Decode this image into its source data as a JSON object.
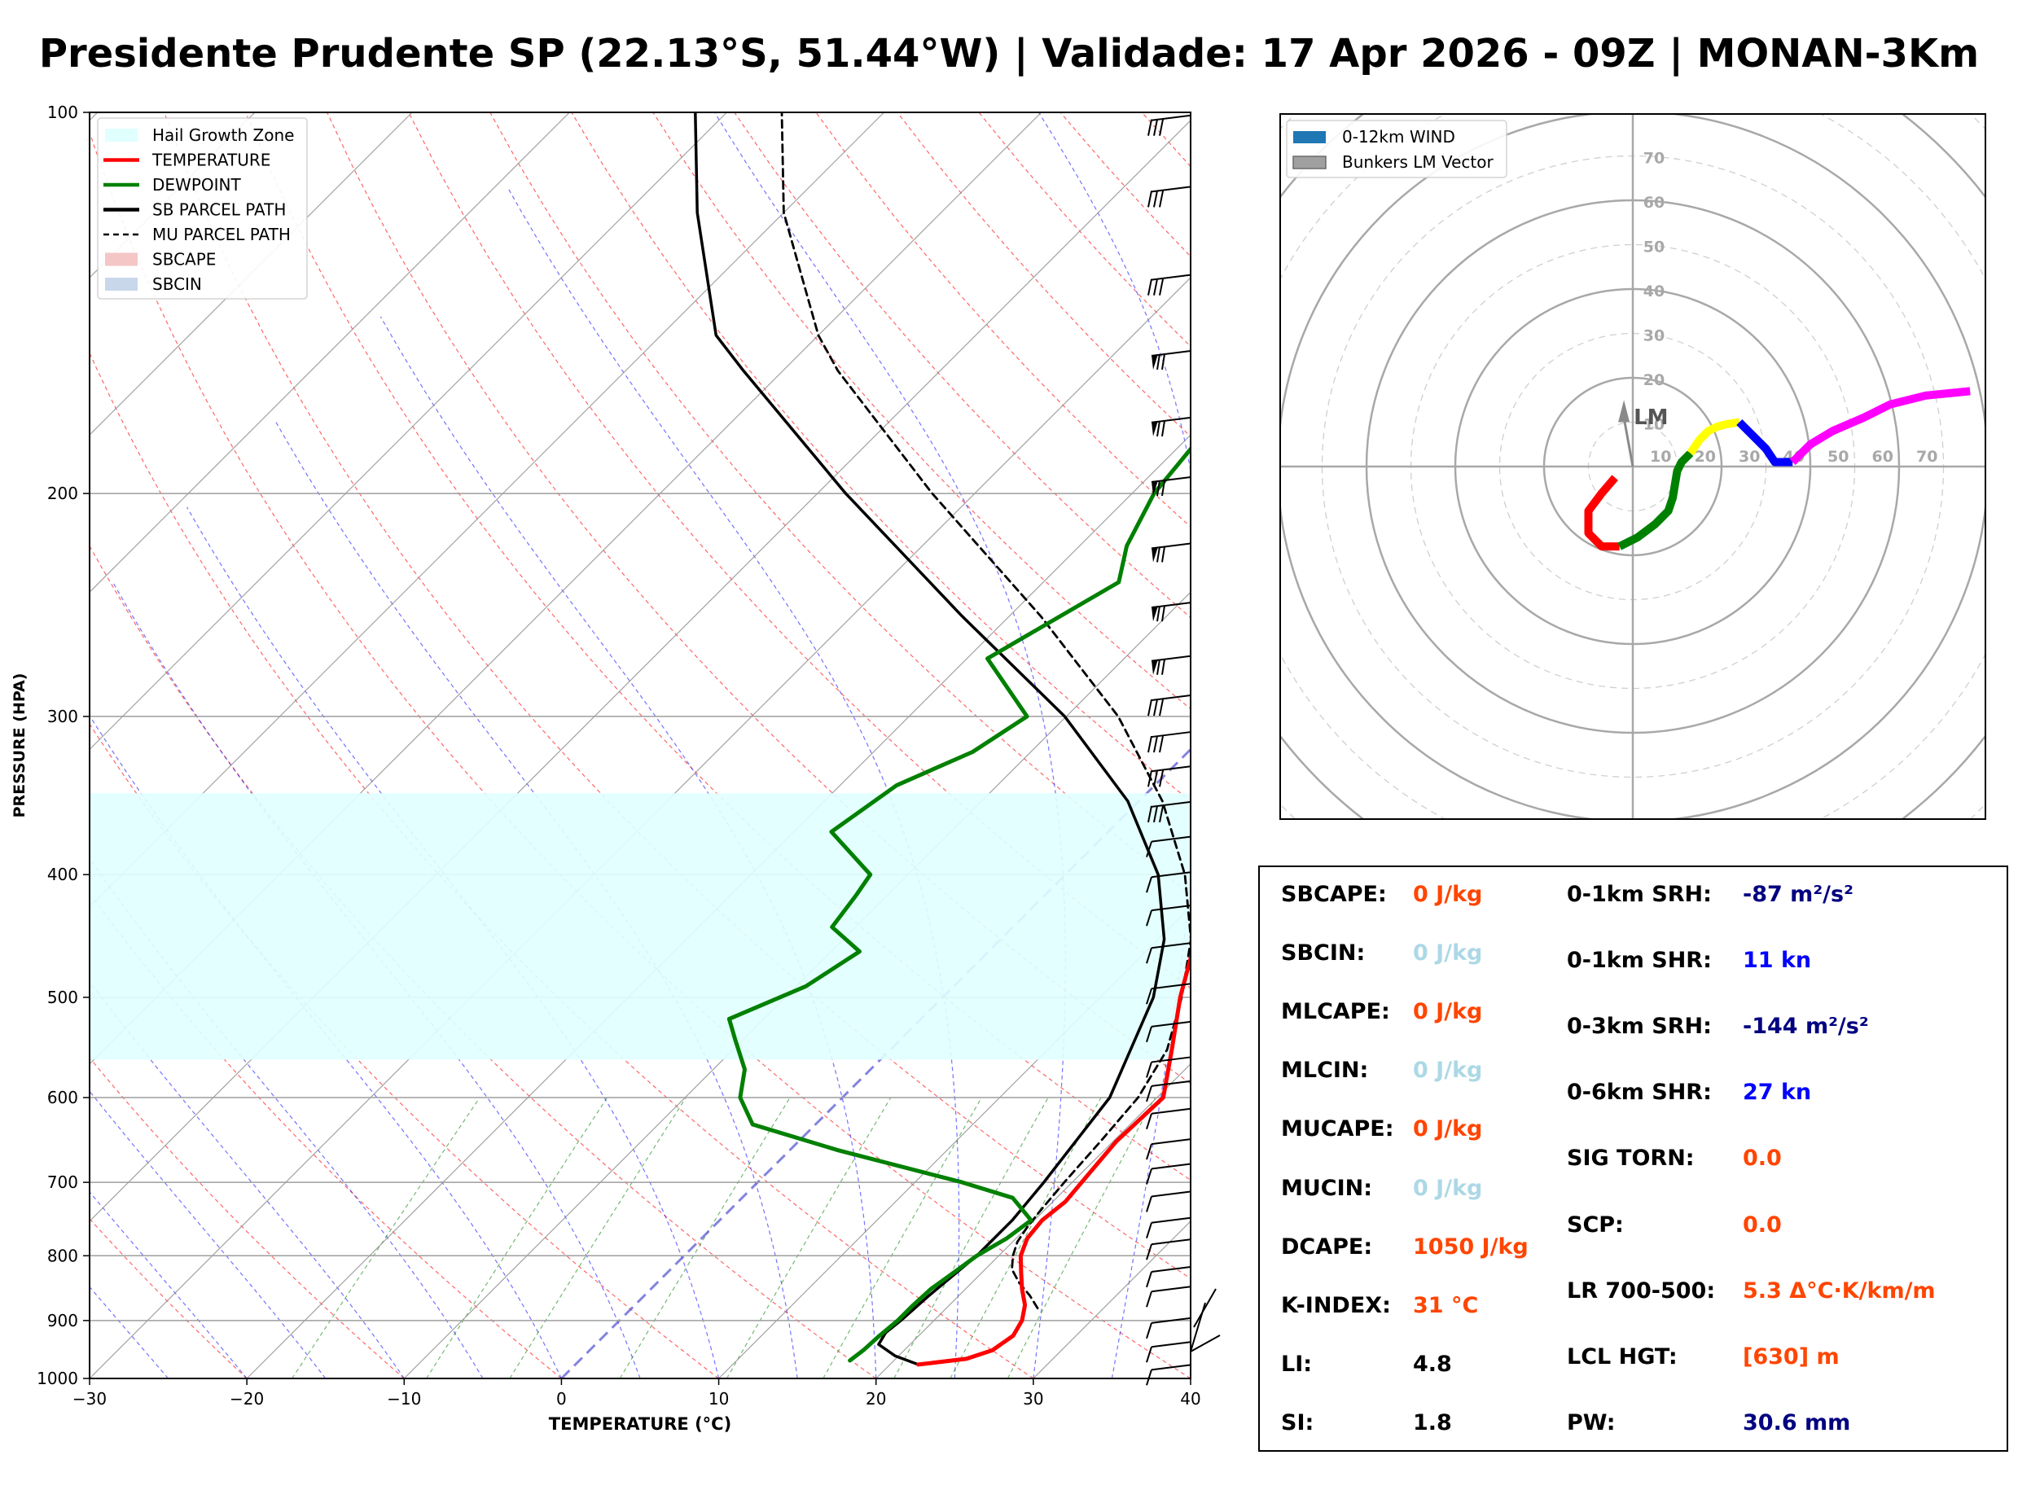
{
  "title": "Presidente Prudente SP (22.13°S, 51.44°W) | Validade: 17 Apr 2026 - 09Z | MONAN-3Km",
  "chart_data": [
    {
      "type": "line",
      "kind": "skew-T log-P sounding",
      "xlabel": "TEMPERATURE (°C)",
      "ylabel": "PRESSURE (HPA)",
      "xlim": [
        -30,
        40
      ],
      "ylim": [
        1000,
        100
      ],
      "x_ticks": [
        -30,
        -20,
        -10,
        0,
        10,
        20,
        30,
        40
      ],
      "x_tick_labels": [
        "−30",
        "−20",
        "−10",
        "0",
        "10",
        "20",
        "30",
        "40"
      ],
      "y_ticks": [
        100,
        200,
        300,
        400,
        500,
        600,
        700,
        800,
        900,
        1000
      ],
      "y_tick_labels": [
        "100",
        "200",
        "300",
        "400",
        "500",
        "600",
        "700",
        "800",
        "900",
        "1000"
      ],
      "legend": {
        "position": "top-left",
        "entries": [
          {
            "label": "Hail Growth Zone",
            "color": "#e0ffff",
            "style": "patch"
          },
          {
            "label": "TEMPERATURE",
            "color": "#ff0000",
            "style": "line"
          },
          {
            "label": "DEWPOINT",
            "color": "#008000",
            "style": "line"
          },
          {
            "label": "SB PARCEL PATH",
            "color": "#000000",
            "style": "line"
          },
          {
            "label": "MU PARCEL PATH",
            "color": "#000000",
            "style": "dashed"
          },
          {
            "label": "SBCAPE",
            "color": "#f4c6c6",
            "style": "patch"
          },
          {
            "label": "SBCIN",
            "color": "#c8d8ea",
            "style": "patch"
          }
        ]
      },
      "series": [
        {
          "name": "TEMPERATURE",
          "color": "#ff0000",
          "points": [
            [
              975,
              21.8
            ],
            [
              965,
              24.5
            ],
            [
              950,
              25.6
            ],
            [
              925,
              26.0
            ],
            [
              900,
              25.6
            ],
            [
              875,
              24.8
            ],
            [
              850,
              23.6
            ],
            [
              825,
              22.5
            ],
            [
              800,
              21.4
            ],
            [
              775,
              20.7
            ],
            [
              750,
              20.5
            ],
            [
              725,
              20.8
            ],
            [
              700,
              20.6
            ],
            [
              650,
              20.2
            ],
            [
              600,
              20.4
            ],
            [
              550,
              17.9
            ],
            [
              500,
              15.1
            ],
            [
              450,
              12.4
            ],
            [
              400,
              9.4
            ],
            [
              350,
              5.7
            ],
            [
              320,
              2.2
            ],
            [
              300,
              -0.7
            ],
            [
              260,
              -3.5
            ],
            [
              240,
              -5.6
            ],
            [
              220,
              -6.5
            ],
            [
              200,
              -9.1
            ],
            [
              180,
              -12.6
            ],
            [
              160,
              -16.9
            ],
            [
              150,
              -20.0
            ],
            [
              140,
              -20.5
            ],
            [
              125,
              -23.5
            ],
            [
              110,
              -25.5
            ],
            [
              100,
              -28.0
            ]
          ]
        },
        {
          "name": "DEWPOINT",
          "color": "#008000",
          "points": [
            [
              968,
              17.2
            ],
            [
              950,
              17.4
            ],
            [
              925,
              17.5
            ],
            [
              900,
              17.7
            ],
            [
              875,
              17.7
            ],
            [
              850,
              17.8
            ],
            [
              825,
              18.2
            ],
            [
              800,
              18.6
            ],
            [
              775,
              19.4
            ],
            [
              750,
              19.8
            ],
            [
              720,
              17.2
            ],
            [
              700,
              13.0
            ],
            [
              660,
              3.0
            ],
            [
              630,
              -4.0
            ],
            [
              600,
              -6.5
            ],
            [
              570,
              -8.0
            ],
            [
              540,
              -10.5
            ],
            [
              520,
              -12.2
            ],
            [
              490,
              -9.4
            ],
            [
              460,
              -8.2
            ],
            [
              440,
              -11.5
            ],
            [
              415,
              -12.0
            ],
            [
              400,
              -12.4
            ],
            [
              370,
              -17.6
            ],
            [
              340,
              -16.4
            ],
            [
              320,
              -13.7
            ],
            [
              300,
              -12.5
            ],
            [
              270,
              -18.7
            ],
            [
              235,
              -15.2
            ],
            [
              220,
              -17.0
            ],
            [
              200,
              -18.6
            ],
            [
              170,
              -19.6
            ],
            [
              150,
              -20.6
            ],
            [
              130,
              -25.0
            ],
            [
              115,
              -27.0
            ],
            [
              100,
              -27.5
            ]
          ]
        },
        {
          "name": "SB PARCEL PATH",
          "color": "#000000",
          "points": [
            [
              975,
              21.8
            ],
            [
              960,
              19.8
            ],
            [
              940,
              18.0
            ],
            [
              920,
              17.7
            ],
            [
              900,
              17.9
            ],
            [
              860,
              18.1
            ],
            [
              800,
              18.6
            ],
            [
              750,
              18.6
            ],
            [
              700,
              18.2
            ],
            [
              600,
              17.0
            ],
            [
              500,
              13.4
            ],
            [
              450,
              10.4
            ],
            [
              400,
              5.9
            ],
            [
              350,
              -0.7
            ],
            [
              300,
              -10.1
            ],
            [
              250,
              -23.0
            ],
            [
              200,
              -38.2
            ],
            [
              160,
              -52.5
            ],
            [
              150,
              -56.5
            ],
            [
              120,
              -65.5
            ],
            [
              100,
              -72.0
            ]
          ]
        },
        {
          "name": "MU PARCEL PATH",
          "color": "#000000",
          "points": [
            [
              880,
              25.8
            ],
            [
              860,
              24.5
            ],
            [
              840,
              23.0
            ],
            [
              820,
              21.7
            ],
            [
              800,
              20.9
            ],
            [
              780,
              20.3
            ],
            [
              760,
              20.0
            ],
            [
              740,
              19.8
            ],
            [
              700,
              19.5
            ],
            [
              650,
              19.2
            ],
            [
              600,
              18.8
            ],
            [
              550,
              17.6
            ],
            [
              500,
              15.2
            ],
            [
              450,
              12.1
            ],
            [
              400,
              7.6
            ],
            [
              350,
              1.5
            ],
            [
              300,
              -6.7
            ],
            [
              250,
              -18.0
            ],
            [
              200,
              -32.7
            ],
            [
              160,
              -46.5
            ],
            [
              150,
              -50.0
            ],
            [
              120,
              -60.0
            ],
            [
              100,
              -66.5
            ]
          ]
        }
      ],
      "hail_growth_zone": {
        "color": "#e0ffff",
        "bottom_hPa": 560,
        "top_hPa": 345,
        "temp_range_C": [
          -30,
          -10
        ]
      },
      "isotherm_0C_highlight": true,
      "wind_barbs": [
        {
          "p": 980,
          "type": "short"
        },
        {
          "p": 940,
          "type": "short"
        },
        {
          "p": 900,
          "type": "short"
        },
        {
          "p": 850,
          "type": "short"
        },
        {
          "p": 820,
          "type": "short"
        },
        {
          "p": 780,
          "type": "short"
        },
        {
          "p": 750,
          "type": "short"
        },
        {
          "p": 715,
          "type": "short"
        },
        {
          "p": 680,
          "type": "short"
        },
        {
          "p": 650,
          "type": "short"
        },
        {
          "p": 615,
          "type": "short"
        },
        {
          "p": 585,
          "type": "short"
        },
        {
          "p": 560,
          "type": "short"
        },
        {
          "p": 525,
          "type": "short"
        },
        {
          "p": 490,
          "type": "short"
        },
        {
          "p": 455,
          "type": "short"
        },
        {
          "p": 425,
          "type": "short"
        },
        {
          "p": 400,
          "type": "short"
        },
        {
          "p": 375,
          "type": "short"
        },
        {
          "p": 352,
          "type": "full"
        },
        {
          "p": 330,
          "type": "full"
        },
        {
          "p": 310,
          "type": "full"
        },
        {
          "p": 290,
          "type": "full"
        },
        {
          "p": 270,
          "type": "pennant"
        },
        {
          "p": 245,
          "type": "pennant"
        },
        {
          "p": 220,
          "type": "pennant"
        },
        {
          "p": 195,
          "type": "pennant"
        },
        {
          "p": 175,
          "type": "pennant"
        },
        {
          "p": 155,
          "type": "pennant"
        },
        {
          "p": 135,
          "type": "full"
        },
        {
          "p": 115,
          "type": "full"
        },
        {
          "p": 101,
          "type": "full"
        }
      ]
    },
    {
      "type": "scatter",
      "kind": "hodograph",
      "range_kn": 80,
      "ring_labels": [
        "10",
        "20",
        "30",
        "40",
        "50",
        "60",
        "70"
      ],
      "legend": {
        "position": "top-left",
        "entries": [
          {
            "label": "0-12km WIND",
            "color": "#1f77b4"
          },
          {
            "label": "Bunkers LM Vector",
            "color": "#a0a0a0"
          }
        ]
      },
      "lm_label": "LM",
      "lm_vector": [
        -2,
        11
      ],
      "segments": [
        {
          "color": "#ff0000",
          "points": [
            [
              -4,
              -2.5
            ],
            [
              -7,
              -6
            ],
            [
              -10,
              -10
            ],
            [
              -10,
              -15
            ],
            [
              -7,
              -18
            ],
            [
              -3,
              -18
            ]
          ]
        },
        {
          "color": "#008000",
          "points": [
            [
              -3,
              -18
            ],
            [
              1,
              -16
            ],
            [
              5,
              -13
            ],
            [
              8,
              -10
            ],
            [
              9,
              -7
            ],
            [
              9.5,
              -4
            ],
            [
              10,
              -1
            ],
            [
              11,
              1
            ],
            [
              13,
              3
            ]
          ]
        },
        {
          "color": "#ffff00",
          "points": [
            [
              13,
              3
            ],
            [
              15,
              6
            ],
            [
              17,
              8
            ],
            [
              19,
              9
            ],
            [
              21,
              9.5
            ],
            [
              24,
              10
            ]
          ]
        },
        {
          "color": "#0000ff",
          "points": [
            [
              24,
              10
            ],
            [
              27,
              7
            ],
            [
              30,
              4
            ],
            [
              32,
              1
            ],
            [
              34,
              1
            ],
            [
              36,
              1
            ]
          ]
        },
        {
          "color": "#ff00ff",
          "points": [
            [
              36,
              1
            ],
            [
              37,
              2
            ],
            [
              40,
              5
            ],
            [
              45,
              8
            ],
            [
              52,
              11
            ],
            [
              58,
              14
            ],
            [
              66,
              16
            ],
            [
              76,
              17
            ]
          ]
        }
      ]
    }
  ],
  "params_panel": {
    "left": [
      {
        "label": "SBCAPE:",
        "value": "0 J/kg",
        "color": "#ff4500"
      },
      {
        "label": "SBCIN:",
        "value": "0 J/kg",
        "color": "#add8e6"
      },
      {
        "label": "MLCAPE:",
        "value": "0 J/kg",
        "color": "#ff4500"
      },
      {
        "label": "MLCIN:",
        "value": "0 J/kg",
        "color": "#add8e6"
      },
      {
        "label": "MUCAPE:",
        "value": "0 J/kg",
        "color": "#ff4500"
      },
      {
        "label": "MUCIN:",
        "value": "0 J/kg",
        "color": "#add8e6"
      },
      {
        "label": "DCAPE:",
        "value": "1050 J/kg",
        "color": "#ff4500"
      },
      {
        "label": "K-INDEX:",
        "value": "31 °C",
        "color": "#ff4500"
      },
      {
        "label": "LI:",
        "value": "4.8",
        "color": "#000000"
      },
      {
        "label": "SI:",
        "value": "1.8",
        "color": "#000000"
      }
    ],
    "right": [
      {
        "label": "0-1km SRH:",
        "value": "-87 m²/s²",
        "color": "#000080"
      },
      {
        "label": "0-1km SHR:",
        "value": "11 kn",
        "color": "#0000ff"
      },
      {
        "label": "0-3km SRH:",
        "value": "-144 m²/s²",
        "color": "#000080"
      },
      {
        "label": "0-6km SHR:",
        "value": "27 kn",
        "color": "#0000ff"
      },
      {
        "label": "SIG TORN:",
        "value": "0.0",
        "color": "#ff4500"
      },
      {
        "label": "SCP:",
        "value": "0.0",
        "color": "#ff4500"
      },
      {
        "label": "LR 700-500:",
        "value": "5.3 Δ°C·K/km/m",
        "color": "#ff4500"
      },
      {
        "label": "LCL HGT:",
        "value": "[630] m",
        "color": "#ff4500"
      },
      {
        "label": "PW:",
        "value": "30.6 mm",
        "color": "#000080"
      }
    ]
  }
}
